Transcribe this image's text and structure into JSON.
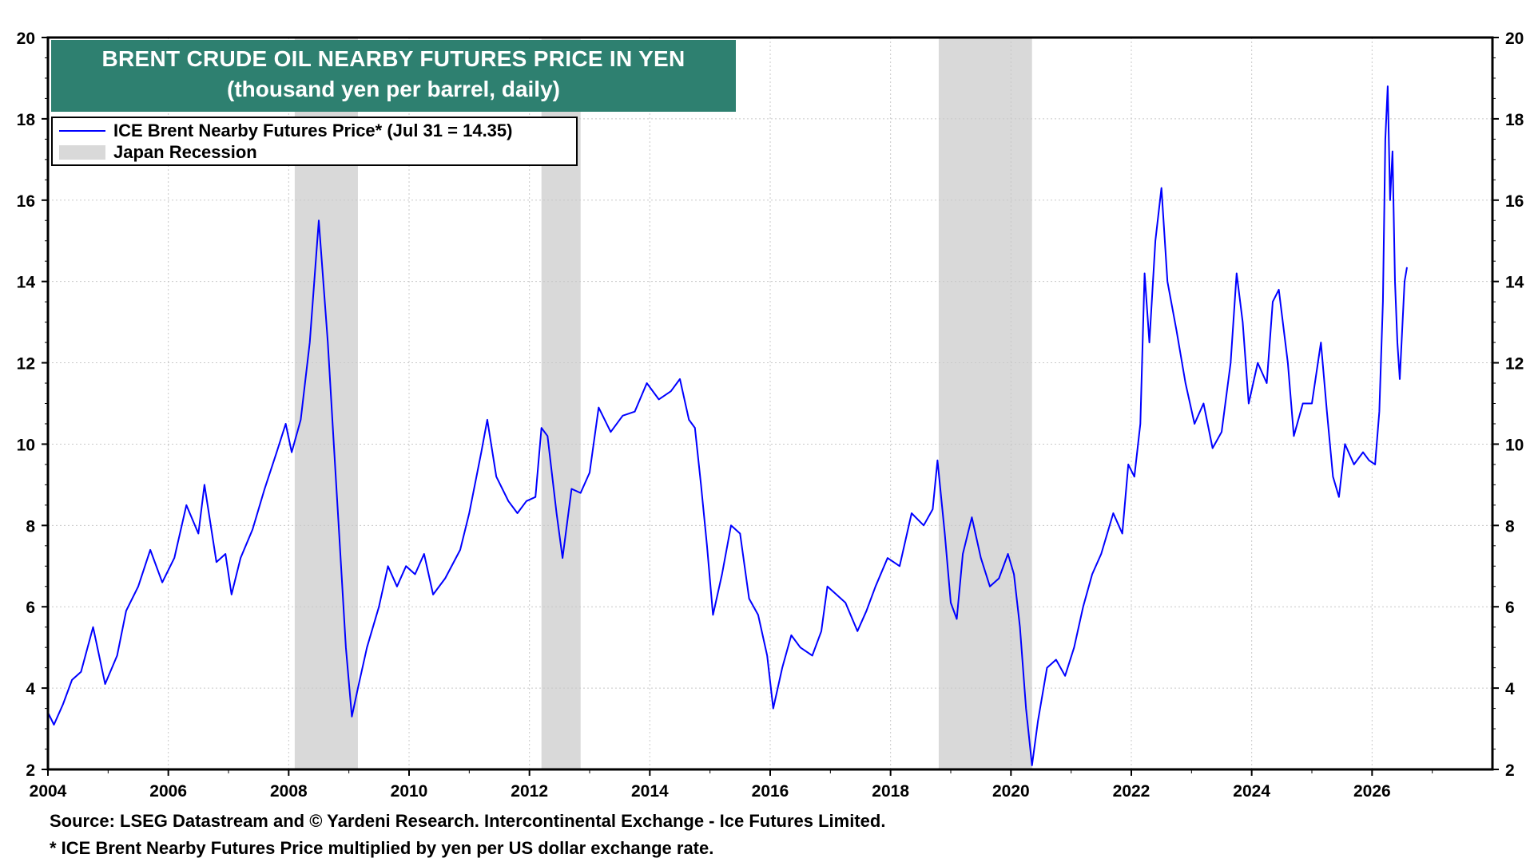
{
  "title": "BRENT CRUDE OIL NEARBY FUTURES PRICE IN YEN",
  "subtitle": "(thousand yen per barrel, daily)",
  "legend": {
    "series_label": "ICE Brent Nearby Futures Price* (Jul 31 = 14.35)",
    "recession_label": "Japan Recession"
  },
  "footer": {
    "source": "Source: LSEG Datastream and © Yardeni Research. Intercontinental Exchange - Ice Futures Limited.",
    "note": "* ICE Brent Nearby Futures Price multiplied by yen per US dollar exchange rate."
  },
  "colors": {
    "line": "#0000ff",
    "recession": "#d9d9d9",
    "title_bg": "#2e8070"
  },
  "chart_data": {
    "type": "line",
    "xlim": [
      2004,
      2028
    ],
    "ylim": [
      2,
      20
    ],
    "x_ticks": [
      "2004",
      "2006",
      "2008",
      "2010",
      "2012",
      "2014",
      "2016",
      "2018",
      "2020",
      "2022",
      "2024",
      "2026"
    ],
    "y_ticks": [
      "2",
      "4",
      "6",
      "8",
      "10",
      "12",
      "14",
      "16",
      "18",
      "20"
    ],
    "grid": true,
    "legend_position": "top-left",
    "recessions": [
      {
        "start": 2008.1,
        "end": 2009.15
      },
      {
        "start": 2012.2,
        "end": 2012.85
      },
      {
        "start": 2018.8,
        "end": 2020.35
      }
    ],
    "series": [
      {
        "name": "ICE Brent Nearby Futures Price* (Jul 31 = 14.35)",
        "points": [
          [
            2004.0,
            3.4
          ],
          [
            2004.1,
            3.1
          ],
          [
            2004.25,
            3.6
          ],
          [
            2004.4,
            4.2
          ],
          [
            2004.55,
            4.4
          ],
          [
            2004.75,
            5.5
          ],
          [
            2004.95,
            4.1
          ],
          [
            2005.15,
            4.8
          ],
          [
            2005.3,
            5.9
          ],
          [
            2005.5,
            6.5
          ],
          [
            2005.7,
            7.4
          ],
          [
            2005.9,
            6.6
          ],
          [
            2006.1,
            7.2
          ],
          [
            2006.3,
            8.5
          ],
          [
            2006.5,
            7.8
          ],
          [
            2006.6,
            9.0
          ],
          [
            2006.8,
            7.1
          ],
          [
            2006.95,
            7.3
          ],
          [
            2007.05,
            6.3
          ],
          [
            2007.2,
            7.2
          ],
          [
            2007.4,
            7.9
          ],
          [
            2007.6,
            8.9
          ],
          [
            2007.8,
            9.8
          ],
          [
            2007.95,
            10.5
          ],
          [
            2008.05,
            9.8
          ],
          [
            2008.2,
            10.6
          ],
          [
            2008.35,
            12.5
          ],
          [
            2008.5,
            15.5
          ],
          [
            2008.65,
            12.5
          ],
          [
            2008.75,
            10.0
          ],
          [
            2008.85,
            7.5
          ],
          [
            2008.95,
            5.0
          ],
          [
            2009.05,
            3.3
          ],
          [
            2009.15,
            4.0
          ],
          [
            2009.3,
            5.0
          ],
          [
            2009.5,
            6.0
          ],
          [
            2009.65,
            7.0
          ],
          [
            2009.8,
            6.5
          ],
          [
            2009.95,
            7.0
          ],
          [
            2010.1,
            6.8
          ],
          [
            2010.25,
            7.3
          ],
          [
            2010.4,
            6.3
          ],
          [
            2010.6,
            6.7
          ],
          [
            2010.85,
            7.4
          ],
          [
            2011.0,
            8.3
          ],
          [
            2011.2,
            9.8
          ],
          [
            2011.3,
            10.6
          ],
          [
            2011.45,
            9.2
          ],
          [
            2011.65,
            8.6
          ],
          [
            2011.8,
            8.3
          ],
          [
            2011.95,
            8.6
          ],
          [
            2012.1,
            8.7
          ],
          [
            2012.2,
            10.4
          ],
          [
            2012.3,
            10.2
          ],
          [
            2012.45,
            8.3
          ],
          [
            2012.55,
            7.2
          ],
          [
            2012.7,
            8.9
          ],
          [
            2012.85,
            8.8
          ],
          [
            2013.0,
            9.3
          ],
          [
            2013.15,
            10.9
          ],
          [
            2013.35,
            10.3
          ],
          [
            2013.55,
            10.7
          ],
          [
            2013.75,
            10.8
          ],
          [
            2013.95,
            11.5
          ],
          [
            2014.15,
            11.1
          ],
          [
            2014.35,
            11.3
          ],
          [
            2014.5,
            11.6
          ],
          [
            2014.65,
            10.6
          ],
          [
            2014.75,
            10.4
          ],
          [
            2014.85,
            9.0
          ],
          [
            2014.95,
            7.5
          ],
          [
            2015.05,
            5.8
          ],
          [
            2015.2,
            6.8
          ],
          [
            2015.35,
            8.0
          ],
          [
            2015.5,
            7.8
          ],
          [
            2015.65,
            6.2
          ],
          [
            2015.8,
            5.8
          ],
          [
            2015.95,
            4.8
          ],
          [
            2016.05,
            3.5
          ],
          [
            2016.2,
            4.5
          ],
          [
            2016.35,
            5.3
          ],
          [
            2016.5,
            5.0
          ],
          [
            2016.7,
            4.8
          ],
          [
            2016.85,
            5.4
          ],
          [
            2016.95,
            6.5
          ],
          [
            2017.1,
            6.3
          ],
          [
            2017.25,
            6.1
          ],
          [
            2017.45,
            5.4
          ],
          [
            2017.6,
            5.9
          ],
          [
            2017.75,
            6.5
          ],
          [
            2017.95,
            7.2
          ],
          [
            2018.15,
            7.0
          ],
          [
            2018.35,
            8.3
          ],
          [
            2018.55,
            8.0
          ],
          [
            2018.7,
            8.4
          ],
          [
            2018.78,
            9.6
          ],
          [
            2018.9,
            7.8
          ],
          [
            2019.0,
            6.1
          ],
          [
            2019.1,
            5.7
          ],
          [
            2019.2,
            7.3
          ],
          [
            2019.35,
            8.2
          ],
          [
            2019.5,
            7.2
          ],
          [
            2019.65,
            6.5
          ],
          [
            2019.8,
            6.7
          ],
          [
            2019.95,
            7.3
          ],
          [
            2020.05,
            6.8
          ],
          [
            2020.15,
            5.5
          ],
          [
            2020.25,
            3.5
          ],
          [
            2020.35,
            2.1
          ],
          [
            2020.45,
            3.2
          ],
          [
            2020.6,
            4.5
          ],
          [
            2020.75,
            4.7
          ],
          [
            2020.9,
            4.3
          ],
          [
            2021.05,
            5.0
          ],
          [
            2021.2,
            6.0
          ],
          [
            2021.35,
            6.8
          ],
          [
            2021.5,
            7.3
          ],
          [
            2021.7,
            8.3
          ],
          [
            2021.85,
            7.8
          ],
          [
            2021.95,
            9.5
          ],
          [
            2022.05,
            9.2
          ],
          [
            2022.15,
            10.5
          ],
          [
            2022.22,
            14.2
          ],
          [
            2022.3,
            12.5
          ],
          [
            2022.4,
            15.0
          ],
          [
            2022.5,
            16.3
          ],
          [
            2022.6,
            14.0
          ],
          [
            2022.75,
            12.8
          ],
          [
            2022.9,
            11.5
          ],
          [
            2023.05,
            10.5
          ],
          [
            2023.2,
            11.0
          ],
          [
            2023.35,
            9.9
          ],
          [
            2023.5,
            10.3
          ],
          [
            2023.65,
            12.0
          ],
          [
            2023.75,
            14.2
          ],
          [
            2023.85,
            13.0
          ],
          [
            2023.95,
            11.0
          ],
          [
            2024.1,
            12.0
          ],
          [
            2024.25,
            11.5
          ],
          [
            2024.35,
            13.5
          ],
          [
            2024.45,
            13.8
          ],
          [
            2024.6,
            12.0
          ],
          [
            2024.7,
            10.2
          ],
          [
            2024.85,
            11.0
          ],
          [
            2025.0,
            11.0
          ],
          [
            2025.15,
            12.5
          ],
          [
            2025.25,
            10.8
          ],
          [
            2025.35,
            9.2
          ],
          [
            2025.45,
            8.7
          ],
          [
            2025.55,
            10.0
          ],
          [
            2025.7,
            9.5
          ],
          [
            2025.85,
            9.8
          ],
          [
            2025.95,
            9.6
          ],
          [
            2026.05,
            9.5
          ],
          [
            2026.12,
            10.8
          ],
          [
            2026.18,
            13.5
          ],
          [
            2026.22,
            17.5
          ],
          [
            2026.26,
            18.8
          ],
          [
            2026.3,
            16.0
          ],
          [
            2026.34,
            17.2
          ],
          [
            2026.38,
            14.0
          ],
          [
            2026.42,
            12.5
          ],
          [
            2026.46,
            11.6
          ],
          [
            2026.5,
            12.8
          ],
          [
            2026.54,
            14.0
          ],
          [
            2026.58,
            14.35
          ]
        ]
      }
    ]
  }
}
